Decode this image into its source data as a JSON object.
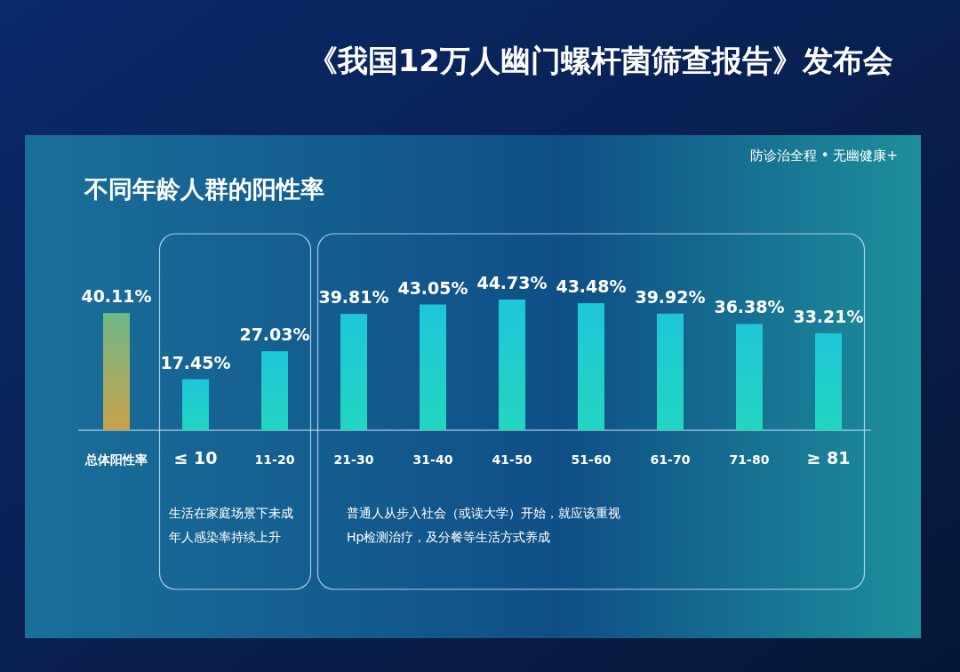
{
  "chart_data": {
    "type": "bar",
    "title": "不同年龄人群的阳性率",
    "categories": [
      "总体阳性率",
      "≤ 10",
      "11-20",
      "21-30",
      "31-40",
      "41-50",
      "51-60",
      "61-70",
      "71-80",
      "≥ 81"
    ],
    "values": [
      40.11,
      17.45,
      27.03,
      39.81,
      43.05,
      44.73,
      43.48,
      39.92,
      36.38,
      33.21
    ],
    "value_labels": [
      "40.11%",
      "17.45%",
      "27.03%",
      "39.81%",
      "43.05%",
      "44.73%",
      "43.48%",
      "39.92%",
      "36.38%",
      "33.21%"
    ],
    "colors": [
      "#6fb889",
      "#1ec6d8",
      "#1ec6d8",
      "#1ec6d8",
      "#1ec6d8",
      "#1ec6d8",
      "#1ec6d8",
      "#1ec6d8",
      "#1ec6d8",
      "#1ec6d8"
    ],
    "annotations": [
      "《我国12万人幽门螺杆菌筛查报告》发布会",
      "防诊治全程 • 无幽健康+",
      "生活在家庭场景下未成年人感染率持续上升",
      "普通人从步入社会（或读大学）开始，就应该重视Hp检测治疗，及分餐等生活方式养成"
    ]
  }
}
